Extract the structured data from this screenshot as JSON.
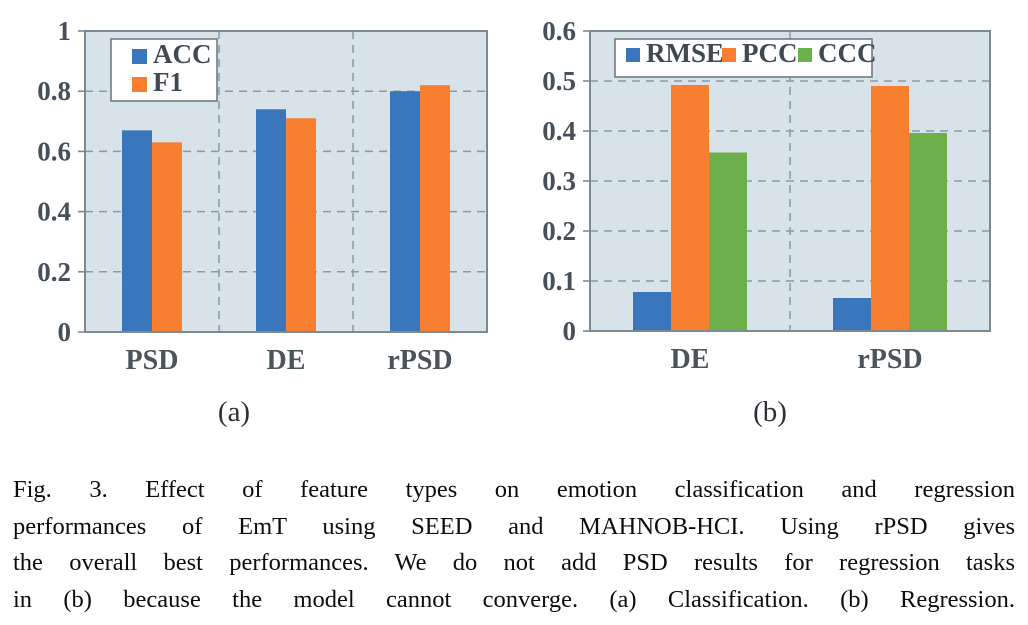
{
  "figure": {
    "caption_lines": [
      "Fig. 3.   Effect of feature types on emotion classification and regression",
      "performances of EmT using SEED and MAHNOB-HCI. Using rPSD gives",
      "the overall best performances. We do not add PSD results for regression tasks",
      "in (b) because the model cannot converge. (a) Classification. (b) Regression."
    ]
  },
  "colors": {
    "bar_blue": "#3A76BC",
    "bar_orange": "#F87E30",
    "bar_green": "#6BB04B",
    "plot_background": "#D8E2E9",
    "gridline": "#8A99A4",
    "plot_border": "#7D8A93",
    "axis_text": "#46505A",
    "caption_text": "#0D0D0D"
  },
  "chart_data": [
    {
      "type": "bar",
      "subcaption": "(a)",
      "categories": [
        "PSD",
        "DE",
        "rPSD"
      ],
      "series": [
        {
          "name": "ACC",
          "color": "#3A76BC",
          "values": [
            0.67,
            0.74,
            0.8
          ]
        },
        {
          "name": "F1",
          "color": "#F87E30",
          "values": [
            0.63,
            0.71,
            0.82
          ]
        }
      ],
      "ylim": [
        0,
        1
      ],
      "yticks": [
        {
          "value": 0,
          "label": "0"
        },
        {
          "value": 0.2,
          "label": "0.2"
        },
        {
          "value": 0.4,
          "label": "0.4"
        },
        {
          "value": 0.6,
          "label": "0.6"
        },
        {
          "value": 0.8,
          "label": "0.8"
        },
        {
          "value": 1,
          "label": "1"
        }
      ],
      "grid": "dashed",
      "legend_position": "top-left-vertical"
    },
    {
      "type": "bar",
      "subcaption": "(b)",
      "categories": [
        "DE",
        "rPSD"
      ],
      "series": [
        {
          "name": "RMSE",
          "color": "#3A76BC",
          "values": [
            0.078,
            0.066
          ]
        },
        {
          "name": "PCC",
          "color": "#F87E30",
          "values": [
            0.492,
            0.49
          ]
        },
        {
          "name": "CCC",
          "color": "#6BB04B",
          "values": [
            0.357,
            0.396
          ]
        }
      ],
      "ylim": [
        0,
        0.6
      ],
      "yticks": [
        {
          "value": 0,
          "label": "0"
        },
        {
          "value": 0.1,
          "label": "0.1"
        },
        {
          "value": 0.2,
          "label": "0.2"
        },
        {
          "value": 0.3,
          "label": "0.3"
        },
        {
          "value": 0.4,
          "label": "0.4"
        },
        {
          "value": 0.5,
          "label": "0.5"
        },
        {
          "value": 0.6,
          "label": "0.6"
        }
      ],
      "grid": "dashed",
      "legend_position": "top-center-horizontal"
    }
  ]
}
